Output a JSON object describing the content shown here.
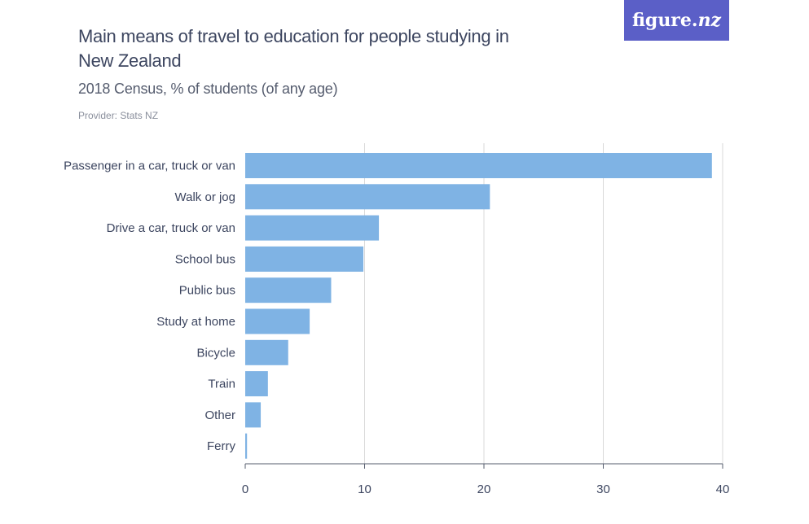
{
  "header": {
    "title": "Main means of travel to education for people studying in New Zealand",
    "subtitle": "2018 Census, % of students (of any age)",
    "provider": "Provider: Stats NZ",
    "logo_text": "figure.",
    "logo_italic": "nz"
  },
  "colors": {
    "bar": "#7fb3e4",
    "grid": "#d9d9d9",
    "axis": "#555c6e",
    "logo_bg": "#5b5fc7"
  },
  "chart_data": {
    "type": "bar",
    "orientation": "horizontal",
    "categories": [
      "Passenger in a car, truck or van",
      "Walk or jog",
      "Drive a car, truck or van",
      "School bus",
      "Public bus",
      "Study at home",
      "Bicycle",
      "Train",
      "Other",
      "Ferry"
    ],
    "values": [
      39.1,
      20.5,
      11.2,
      9.9,
      7.2,
      5.4,
      3.6,
      1.9,
      1.3,
      0.15
    ],
    "xlim": [
      0,
      40
    ],
    "xticks": [
      0,
      10,
      20,
      30,
      40
    ],
    "grid": true
  }
}
